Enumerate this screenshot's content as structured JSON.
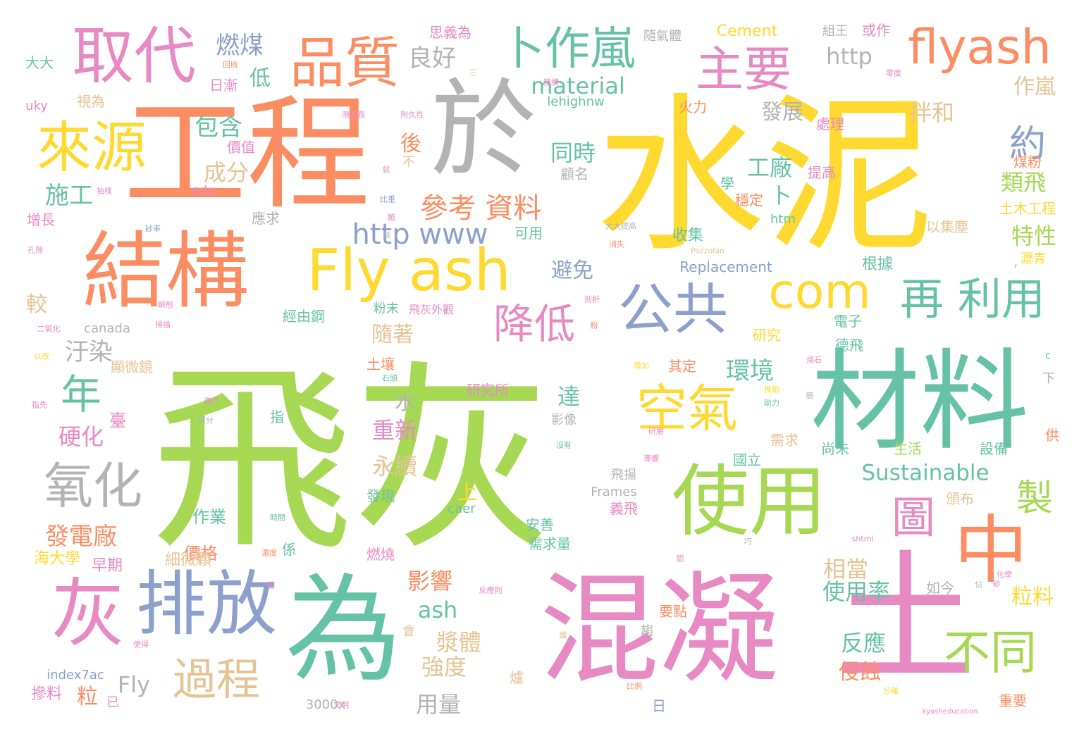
{
  "palette": {
    "green": "#a6d854",
    "yellow": "#ffd92f",
    "orange": "#fc8d62",
    "pink": "#e78ac3",
    "teal": "#66c2a5",
    "blue": "#8da0cb",
    "gray": "#b3b3b3",
    "tan": "#e5c494"
  },
  "words": [
    {
      "text": "飛灰",
      "color": "green"
    },
    {
      "text": "水泥",
      "color": "yellow"
    },
    {
      "text": "混凝",
      "color": "pink"
    },
    {
      "text": "土",
      "color": "pink"
    },
    {
      "text": "工程",
      "color": "orange"
    },
    {
      "text": "材料",
      "color": "teal"
    },
    {
      "text": "於",
      "color": "gray"
    },
    {
      "text": "為",
      "color": "teal"
    },
    {
      "text": "結構",
      "color": "orange"
    },
    {
      "text": "灰",
      "color": "pink"
    },
    {
      "text": "排放",
      "color": "blue"
    },
    {
      "text": "使用",
      "color": "green"
    },
    {
      "text": "中",
      "color": "orange"
    },
    {
      "text": "Fly ash",
      "color": "yellow"
    },
    {
      "text": "取代",
      "color": "pink"
    },
    {
      "text": "來源",
      "color": "yellow"
    },
    {
      "text": "品質",
      "color": "orange"
    },
    {
      "text": "公共",
      "color": "blue"
    },
    {
      "text": "空氣",
      "color": "yellow"
    },
    {
      "text": "flyash",
      "color": "orange"
    },
    {
      "text": "卜作嵐",
      "color": "teal"
    },
    {
      "text": "主要",
      "color": "pink"
    },
    {
      "text": "com",
      "color": "yellow"
    },
    {
      "text": "再 利用",
      "color": "teal"
    },
    {
      "text": "氧化",
      "color": "gray"
    },
    {
      "text": "年",
      "color": "teal"
    },
    {
      "text": "降低",
      "color": "pink"
    },
    {
      "text": "不同",
      "color": "green"
    },
    {
      "text": "圖",
      "color": "pink"
    },
    {
      "text": "過程",
      "color": "tan"
    },
    {
      "text": "製",
      "color": "green"
    },
    {
      "text": "http www",
      "color": "blue"
    },
    {
      "text": "參考 資料",
      "color": "orange"
    },
    {
      "text": "約",
      "color": "blue"
    },
    {
      "text": "Sustainable",
      "color": "teal"
    },
    {
      "text": "material",
      "color": "teal"
    },
    {
      "text": "燃煤",
      "color": "blue"
    },
    {
      "text": "良好",
      "color": "gray"
    },
    {
      "text": "http",
      "color": "gray"
    },
    {
      "text": "Cement",
      "color": "yellow"
    },
    {
      "text": "包含",
      "color": "teal"
    },
    {
      "text": "成分",
      "color": "tan"
    },
    {
      "text": "施工",
      "color": "teal"
    },
    {
      "text": "汙染",
      "color": "gray"
    },
    {
      "text": "較",
      "color": "tan"
    },
    {
      "text": "硬化",
      "color": "pink"
    },
    {
      "text": "發電廠",
      "color": "orange"
    },
    {
      "text": "環境",
      "color": "teal"
    },
    {
      "text": "工廠",
      "color": "teal"
    },
    {
      "text": "類飛",
      "color": "green"
    },
    {
      "text": "特性",
      "color": "green"
    },
    {
      "text": "拌和",
      "color": "tan"
    },
    {
      "text": "發展",
      "color": "gray"
    },
    {
      "text": "同時",
      "color": "teal"
    },
    {
      "text": "避免",
      "color": "blue"
    },
    {
      "text": "隨著",
      "color": "tan"
    },
    {
      "text": "重新",
      "color": "pink"
    },
    {
      "text": "永續",
      "color": "tan"
    },
    {
      "text": "影響",
      "color": "orange"
    },
    {
      "text": "漿體",
      "color": "tan"
    },
    {
      "text": "強度",
      "color": "tan"
    },
    {
      "text": "用量",
      "color": "gray"
    },
    {
      "text": "相當",
      "color": "tan"
    },
    {
      "text": "使用率",
      "color": "teal"
    },
    {
      "text": "反應",
      "color": "teal"
    },
    {
      "text": "侵蝕",
      "color": "orange"
    },
    {
      "text": "粒料",
      "color": "yellow"
    },
    {
      "text": "ash",
      "color": "teal"
    },
    {
      "text": "Fly",
      "color": "gray"
    },
    {
      "text": "價格",
      "color": "orange"
    },
    {
      "text": "作業",
      "color": "teal"
    },
    {
      "text": "細微顆",
      "color": "tan"
    },
    {
      "text": "海大學",
      "color": "yellow"
    },
    {
      "text": "早期",
      "color": "pink"
    },
    {
      "text": "粒",
      "color": "orange"
    },
    {
      "text": "摻料",
      "color": "pink"
    },
    {
      "text": "index7ac",
      "color": "blue"
    },
    {
      "text": "3000x",
      "color": "gray"
    },
    {
      "text": "Replacement",
      "color": "blue"
    },
    {
      "text": "收集",
      "color": "teal"
    },
    {
      "text": "根據",
      "color": "teal"
    },
    {
      "text": "作嵐",
      "color": "tan"
    },
    {
      "text": "處理",
      "color": "pink"
    },
    {
      "text": "煤粉",
      "color": "orange"
    },
    {
      "text": "提高",
      "color": "pink"
    },
    {
      "text": "土木工程",
      "color": "yellow"
    },
    {
      "text": "瀝青",
      "color": "yellow"
    },
    {
      "text": "以集塵",
      "color": "tan"
    },
    {
      "text": "電子",
      "color": "teal"
    },
    {
      "text": "研究",
      "color": "yellow"
    },
    {
      "text": "德飛",
      "color": "teal"
    },
    {
      "text": "其定",
      "color": "orange"
    },
    {
      "text": "研究所",
      "color": "pink"
    },
    {
      "text": "需求",
      "color": "tan"
    },
    {
      "text": "尚未",
      "color": "teal"
    },
    {
      "text": "生活",
      "color": "green"
    },
    {
      "text": "設備",
      "color": "teal"
    },
    {
      "text": "國立",
      "color": "teal"
    },
    {
      "text": "頒布",
      "color": "tan"
    },
    {
      "text": "如今",
      "color": "gray"
    },
    {
      "text": "Frames",
      "color": "gray"
    },
    {
      "text": "飛揚",
      "color": "gray"
    },
    {
      "text": "義飛",
      "color": "pink"
    },
    {
      "text": "安善",
      "color": "teal"
    },
    {
      "text": "需求量",
      "color": "teal"
    },
    {
      "text": "燃燒",
      "color": "pink"
    },
    {
      "text": "要點",
      "color": "orange"
    },
    {
      "text": "重要",
      "color": "orange"
    },
    {
      "text": "caer",
      "color": "teal"
    },
    {
      "text": "發現",
      "color": "teal"
    },
    {
      "text": "上",
      "color": "yellow"
    },
    {
      "text": "水",
      "color": "gray"
    },
    {
      "text": "達",
      "color": "teal"
    },
    {
      "text": "後",
      "color": "orange"
    },
    {
      "text": "卜",
      "color": "teal"
    },
    {
      "text": "htm",
      "color": "teal"
    },
    {
      "text": "穩定",
      "color": "orange"
    },
    {
      "text": "學",
      "color": "teal"
    },
    {
      "text": "火力",
      "color": "orange"
    },
    {
      "text": "lehighnw",
      "color": "teal"
    },
    {
      "text": "顧名",
      "color": "gray"
    },
    {
      "text": "低",
      "color": "teal"
    },
    {
      "text": "日漸",
      "color": "pink"
    },
    {
      "text": "價值",
      "color": "pink"
    },
    {
      "text": "應求",
      "color": "gray"
    },
    {
      "text": "可用",
      "color": "teal"
    },
    {
      "text": "經由鋼",
      "color": "teal"
    },
    {
      "text": "粉末",
      "color": "teal"
    },
    {
      "text": "飛灰外觀",
      "color": "pink"
    },
    {
      "text": "canada",
      "color": "gray"
    },
    {
      "text": "顯微鏡",
      "color": "tan"
    },
    {
      "text": "土壤",
      "color": "orange"
    },
    {
      "text": "指",
      "color": "teal"
    },
    {
      "text": "係",
      "color": "teal"
    },
    {
      "text": "增長",
      "color": "pink"
    },
    {
      "text": "大大",
      "color": "teal"
    },
    {
      "text": "uky",
      "color": "pink"
    },
    {
      "text": "視為",
      "color": "tan"
    },
    {
      "text": "edu",
      "color": "pink"
    },
    {
      "text": "思義為",
      "color": "pink"
    },
    {
      "text": "隨氣體",
      "color": "gray"
    },
    {
      "text": "組王",
      "color": "gray"
    },
    {
      "text": "或作",
      "color": "pink"
    },
    {
      "text": "不",
      "color": "tan"
    },
    {
      "text": "臺",
      "color": "pink"
    },
    {
      "text": "影像",
      "color": "gray"
    },
    {
      "text": "趨",
      "color": "gray"
    },
    {
      "text": "日",
      "color": "blue"
    },
    {
      "text": "會",
      "color": "tan"
    },
    {
      "text": "已",
      "color": "pink"
    },
    {
      "text": "爐",
      "color": "tan"
    },
    {
      "text": "供",
      "color": "orange"
    },
    {
      "text": "下",
      "color": "gray"
    },
    {
      "text": "c",
      "color": "teal"
    },
    {
      "text": "r",
      "color": "gray"
    },
    {
      "text": "shtml",
      "color": "pink"
    },
    {
      "text": "kyasheducation",
      "color": "pink"
    },
    {
      "text": "Pozzolan",
      "color": "tan"
    },
    {
      "text": "大大提高",
      "color": "gray"
    },
    {
      "text": "附久性",
      "color": "pink"
    },
    {
      "text": "隨國長",
      "color": "pink"
    },
    {
      "text": "零度",
      "color": "pink"
    },
    {
      "text": "化學",
      "color": "pink"
    },
    {
      "text": "比例",
      "color": "orange"
    },
    {
      "text": "反應則",
      "color": "pink"
    },
    {
      "text": "分離",
      "color": "yellow"
    },
    {
      "text": "文明",
      "color": "pink"
    },
    {
      "text": "時間",
      "color": "teal"
    },
    {
      "text": "濃度",
      "color": "orange"
    },
    {
      "text": "推動",
      "color": "yellow"
    },
    {
      "text": "助力",
      "color": "teal"
    },
    {
      "text": "砂",
      "color": "pink"
    },
    {
      "text": "石頭",
      "color": "teal"
    },
    {
      "text": "二氧化",
      "color": "pink"
    },
    {
      "text": "孔隙",
      "color": "pink"
    },
    {
      "text": "以改",
      "color": "yellow"
    },
    {
      "text": "指先",
      "color": "pink"
    },
    {
      "text": "進行",
      "color": "pink"
    },
    {
      "text": "促分",
      "color": "gray"
    },
    {
      "text": "使得",
      "color": "pink"
    },
    {
      "text": "消失",
      "color": "orange"
    },
    {
      "text": "抽樣",
      "color": "pink"
    },
    {
      "text": "瞬態",
      "color": "pink"
    },
    {
      "text": "掃描",
      "color": "pink"
    },
    {
      "text": "砂率",
      "color": "blue"
    },
    {
      "text": "比重",
      "color": "blue"
    },
    {
      "text": "類",
      "color": "pink"
    },
    {
      "text": "扶",
      "color": "gray"
    },
    {
      "text": "就",
      "color": "pink"
    },
    {
      "text": "三",
      "color": "tan"
    },
    {
      "text": "陸續",
      "color": "pink"
    },
    {
      "text": "回收",
      "color": "orange"
    },
    {
      "text": "剖析",
      "color": "pink"
    },
    {
      "text": "增加",
      "color": "yellow"
    },
    {
      "text": "燒石",
      "color": "pink"
    },
    {
      "text": "導響",
      "color": "pink"
    },
    {
      "text": "沒有",
      "color": "teal"
    },
    {
      "text": "簡",
      "color": "gray"
    },
    {
      "text": "粉",
      "color": "orange"
    },
    {
      "text": "巧",
      "color": "gray"
    },
    {
      "text": "鋁",
      "color": "pink"
    },
    {
      "text": "研磨",
      "color": "pink"
    },
    {
      "text": "佔",
      "color": "gray"
    },
    {
      "text": "鐵",
      "color": "tan"
    },
    {
      "text": "優",
      "color": "pink"
    }
  ]
}
